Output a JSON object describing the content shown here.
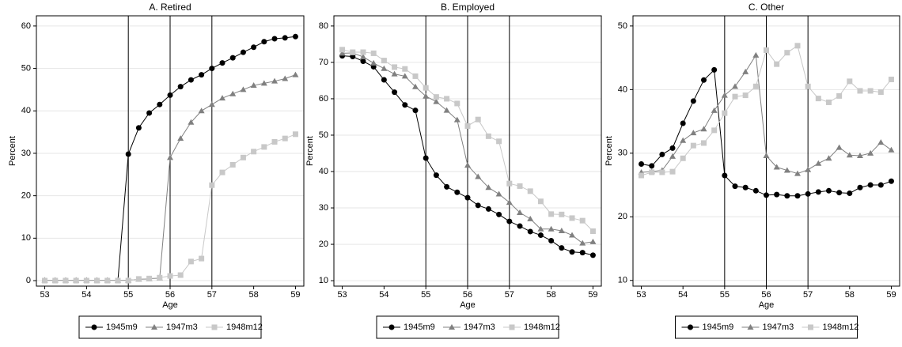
{
  "chart_data": [
    {
      "type": "line",
      "title": "A. Retired",
      "xlabel": "Age",
      "ylabel": "Percent",
      "x": [
        53,
        53.25,
        53.5,
        53.75,
        54,
        54.25,
        54.5,
        54.75,
        55,
        55.25,
        55.5,
        55.75,
        56,
        56.25,
        56.5,
        56.75,
        57,
        57.25,
        57.5,
        57.75,
        58,
        58.25,
        58.5,
        58.75,
        59
      ],
      "xlim": [
        52.8,
        59.2
      ],
      "xticks": [
        53,
        54,
        55,
        56,
        57,
        58,
        59
      ],
      "ylim": [
        -1.3,
        62.4
      ],
      "yticks": [
        0,
        10,
        20,
        30,
        40,
        50,
        60
      ],
      "grid": true,
      "vlines": [
        55,
        56,
        57
      ],
      "series": [
        {
          "name": "1945m9",
          "color": "#000000",
          "marker": "circle",
          "values": [
            0,
            0,
            0,
            0,
            0,
            0,
            0,
            0,
            29.8,
            36,
            39.5,
            41.5,
            43.7,
            45.7,
            47.3,
            48.5,
            50,
            51.3,
            52.5,
            53.8,
            55,
            56.3,
            57,
            57.2,
            57.5
          ]
        },
        {
          "name": "1947m3",
          "color": "#808080",
          "marker": "triangle",
          "values": [
            0.1,
            0.1,
            0.1,
            0.1,
            0.1,
            0.1,
            0.1,
            0.1,
            0.1,
            0.3,
            0.4,
            0.6,
            29,
            33.5,
            37.3,
            40,
            41.5,
            43,
            44,
            45,
            46,
            46.5,
            47,
            47.6,
            48.5
          ]
        },
        {
          "name": "1948m12",
          "color": "#c8c8c8",
          "marker": "square",
          "values": [
            0,
            0,
            0,
            0,
            0,
            0,
            0,
            0,
            0,
            0.4,
            0.5,
            0.7,
            1.1,
            1.3,
            4.5,
            5.2,
            22.5,
            25.5,
            27.3,
            29,
            30.4,
            31.5,
            32.7,
            33.5,
            34.5
          ]
        }
      ]
    },
    {
      "type": "line",
      "title": "B. Employed",
      "xlabel": "Age",
      "ylabel": "Percent",
      "x": [
        53,
        53.25,
        53.5,
        53.75,
        54,
        54.25,
        54.5,
        54.75,
        55,
        55.25,
        55.5,
        55.75,
        56,
        56.25,
        56.5,
        56.75,
        57,
        57.25,
        57.5,
        57.75,
        58,
        58.25,
        58.5,
        58.75,
        59
      ],
      "xlim": [
        52.8,
        59.2
      ],
      "xticks": [
        53,
        54,
        55,
        56,
        57,
        58,
        59
      ],
      "ylim": [
        8.5,
        82.8
      ],
      "yticks": [
        10,
        20,
        30,
        40,
        50,
        60,
        70,
        80
      ],
      "grid": true,
      "vlines": [
        55,
        56,
        57
      ],
      "series": [
        {
          "name": "1945m9",
          "color": "#000000",
          "marker": "circle",
          "values": [
            71.8,
            71.6,
            70.3,
            68.8,
            65.2,
            61.8,
            58.3,
            56.8,
            43.7,
            39,
            35.8,
            34.3,
            32.8,
            30.7,
            29.7,
            28.2,
            26.3,
            25,
            23.5,
            22.5,
            21,
            19,
            17.9,
            17.7,
            17
          ]
        },
        {
          "name": "1947m3",
          "color": "#808080",
          "marker": "triangle",
          "values": [
            72.5,
            72.6,
            71.5,
            69.8,
            68.3,
            66.8,
            66.2,
            63.3,
            60.7,
            59.2,
            56.8,
            54.2,
            41.7,
            38.6,
            35.6,
            33.8,
            31.5,
            28.7,
            27,
            24.2,
            24.2,
            23.7,
            22.5,
            20.3,
            20.7
          ]
        },
        {
          "name": "1948m12",
          "color": "#c8c8c8",
          "marker": "square",
          "values": [
            73.5,
            72.8,
            72.8,
            72.5,
            70.5,
            68.7,
            68.2,
            66.2,
            63,
            60.5,
            60,
            58.7,
            52.5,
            54.3,
            49.7,
            48.3,
            36.7,
            36,
            34.6,
            31.8,
            28.3,
            28.2,
            27.2,
            26.5,
            23.6
          ]
        }
      ]
    },
    {
      "type": "line",
      "title": "C. Other",
      "xlabel": "Age",
      "ylabel": "Percent",
      "x": [
        53,
        53.25,
        53.5,
        53.75,
        54,
        54.25,
        54.5,
        54.75,
        55,
        55.25,
        55.5,
        55.75,
        56,
        56.25,
        56.5,
        56.75,
        57,
        57.25,
        57.5,
        57.75,
        58,
        58.25,
        58.5,
        58.75,
        59
      ],
      "xlim": [
        52.8,
        59.2
      ],
      "xticks": [
        53,
        54,
        55,
        56,
        57,
        58,
        59
      ],
      "ylim": [
        9.1,
        51.6
      ],
      "yticks": [
        10,
        20,
        30,
        40,
        50
      ],
      "grid": true,
      "vlines": [
        55,
        56,
        57
      ],
      "series": [
        {
          "name": "1945m9",
          "color": "#000000",
          "marker": "circle",
          "values": [
            28.3,
            28,
            29.8,
            30.8,
            34.7,
            38.2,
            41.5,
            43.1,
            26.5,
            24.8,
            24.6,
            24.1,
            23.4,
            23.5,
            23.3,
            23.3,
            23.6,
            23.9,
            24.1,
            23.8,
            23.7,
            24.6,
            25,
            25,
            25.6
          ]
        },
        {
          "name": "1947m3",
          "color": "#808080",
          "marker": "triangle",
          "values": [
            27,
            27.1,
            27.3,
            29.5,
            32,
            33.2,
            33.8,
            36.7,
            39.1,
            40.5,
            42.8,
            45.4,
            29.6,
            27.8,
            27.3,
            26.8,
            27.4,
            28.4,
            29.2,
            30.9,
            29.7,
            29.6,
            30,
            31.7,
            30.5
          ]
        },
        {
          "name": "1948m12",
          "color": "#c8c8c8",
          "marker": "square",
          "values": [
            26.5,
            27,
            27,
            27.1,
            29.2,
            31.2,
            31.6,
            33.6,
            36.3,
            38.9,
            39.1,
            40.5,
            46.2,
            44,
            45.8,
            46.9,
            40.5,
            38.6,
            38,
            39,
            41.3,
            39.8,
            39.8,
            39.6,
            41.6
          ]
        }
      ]
    }
  ]
}
